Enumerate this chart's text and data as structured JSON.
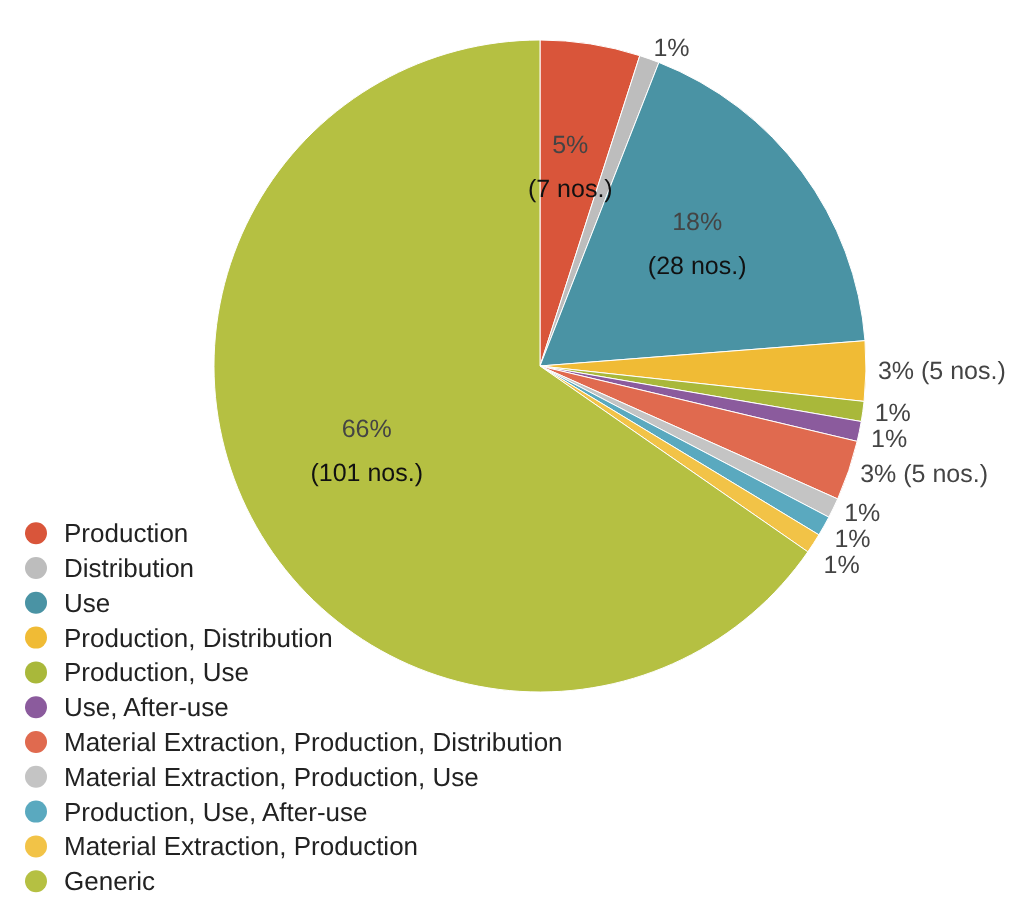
{
  "chart_data": {
    "type": "pie",
    "categories": [
      "Production",
      "Distribution",
      "Use",
      "Production, Distribution",
      "Production, Use",
      "Use, After-use",
      "Material Extraction, Production, Distribution",
      "Material Extraction, Production, Use",
      "Production, Use, After-use",
      "Material Extraction, Production",
      "Generic"
    ],
    "values": [
      5,
      1,
      18,
      3,
      1,
      1,
      3,
      1,
      1,
      1,
      66
    ],
    "value_labels": [
      "5%\n(7 nos.)",
      "1%",
      "18%\n(28 nos.)",
      "3% (5 nos.)",
      "1%",
      "1%",
      "3% (5 nos.)",
      "1%",
      "1%",
      "1%",
      "66%\n(101 nos.)"
    ],
    "colors": [
      "#d9553a",
      "#bdbdbd",
      "#4a93a4",
      "#f0bb35",
      "#a9b83a",
      "#8b5b9d",
      "#e06a4f",
      "#c4c4c4",
      "#5aa9bf",
      "#f2c347",
      "#b5c042"
    ],
    "legend": "bottom left"
  }
}
